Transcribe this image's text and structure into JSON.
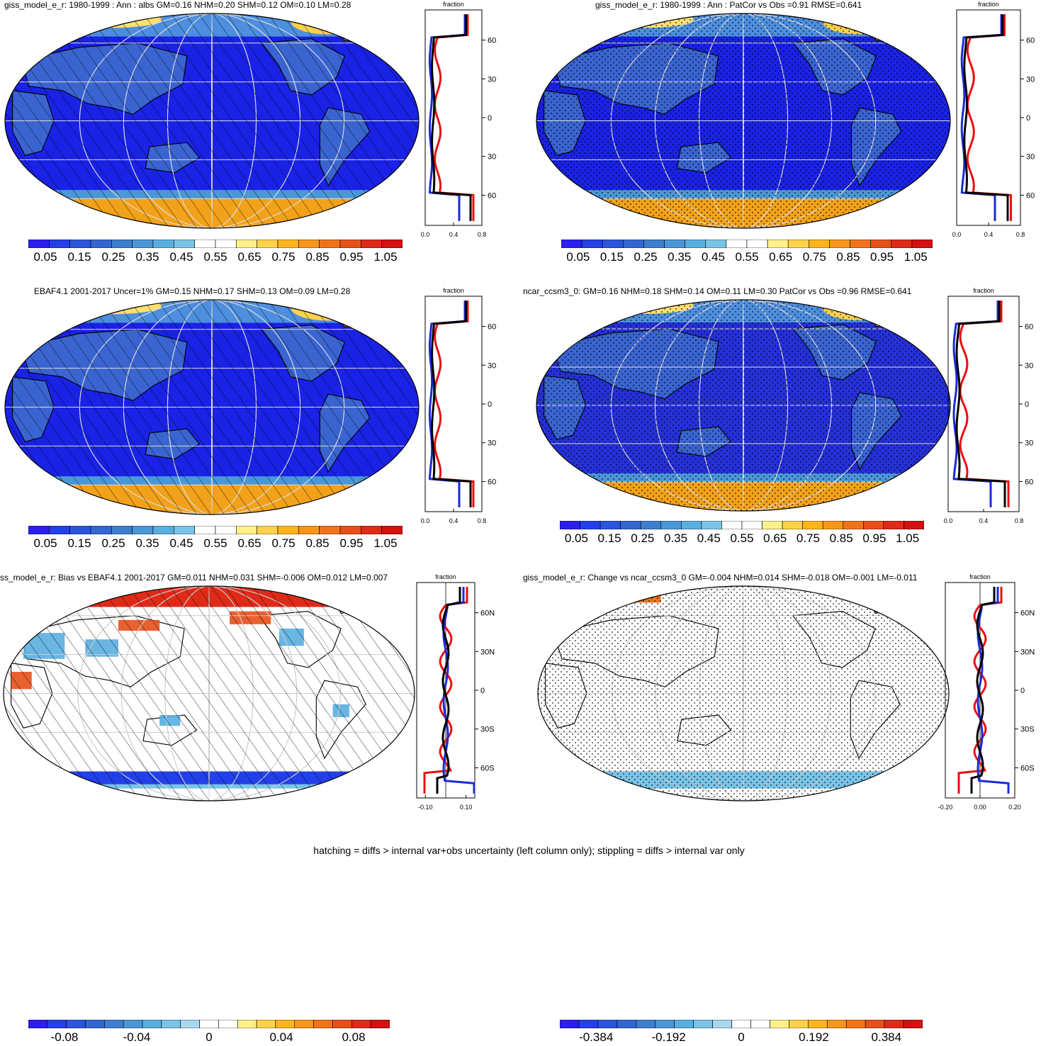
{
  "panels": [
    {
      "id": "p1",
      "title": "giss_model_e_r: 1980-1999 : Ann : albs GM=0.16 NHM=0.20 SHM=0.12 OM=0.10 LM=0.28",
      "pattern": "hatch",
      "ocean": "#1a22e6",
      "colorbar_labels": [
        "0.05",
        "0.15",
        "0.25",
        "0.35",
        "0.45",
        "0.55",
        "0.65",
        "0.75",
        "0.85",
        "0.95",
        "1.05"
      ],
      "profile": {
        "title": "fraction",
        "xticks": [
          "0.0",
          "0.4",
          "0.8"
        ],
        "yticks": [
          "60N",
          "30N",
          "0",
          "30S",
          "60S"
        ]
      }
    },
    {
      "id": "p2",
      "title": "giss_model_e_r: 1980-1999 : Ann : PatCor vs Obs =0.91 RMSE=0.641",
      "pattern": "stipple",
      "ocean": "#1a22e6",
      "colorbar_labels": [
        "0.05",
        "0.15",
        "0.25",
        "0.35",
        "0.45",
        "0.55",
        "0.65",
        "0.75",
        "0.85",
        "0.95",
        "1.05"
      ],
      "profile": {
        "title": "fraction",
        "xticks": [
          "0.0",
          "0.4",
          "0.8"
        ],
        "yticks": [
          "60N",
          "30N",
          "0",
          "30S",
          "60S"
        ]
      }
    },
    {
      "id": "p3",
      "title": "EBAF4.1 2001-2017 Uncer=1% GM=0.15 NHM=0.17 SHM=0.13 OM=0.09 LM=0.28",
      "pattern": "hatch",
      "ocean": "#1a22e6",
      "colorbar_labels": [
        "0.05",
        "0.15",
        "0.25",
        "0.35",
        "0.45",
        "0.55",
        "0.65",
        "0.75",
        "0.85",
        "0.95",
        "1.05"
      ],
      "profile": {
        "title": "fraction",
        "xticks": [
          "0.0",
          "0.4",
          "0.8"
        ],
        "yticks": [
          "60N",
          "30N",
          "0",
          "30S",
          "60S"
        ]
      }
    },
    {
      "id": "p4",
      "title": "ncar_ccsm3_0: GM=0.16 NHM=0.18 SHM=0.14 OM=0.11 LM=0.30 PatCor vs Obs =0.96 RMSE=0.641",
      "pattern": "stipple",
      "ocean": "#2530d8",
      "colorbar_labels": [
        "0.05",
        "0.15",
        "0.25",
        "0.35",
        "0.45",
        "0.55",
        "0.65",
        "0.75",
        "0.85",
        "0.95",
        "1.05"
      ],
      "profile": {
        "title": "fraction",
        "xticks": [
          "0.0",
          "0.4",
          "0.8"
        ],
        "yticks": [
          "60N",
          "30N",
          "0",
          "30S",
          "60S"
        ]
      }
    },
    {
      "id": "p5",
      "title": "ss_model_e_r: Bias vs EBAF4.1 2001-2017 GM=0.011 NHM=0.031 SHM=-0.006 OM=0.012 LM=0.007",
      "pattern": "hatch",
      "ocean": "#ffffff",
      "colorbar_labels": [
        "-0.08",
        "-0.04",
        "0",
        "0.04",
        "0.08"
      ],
      "profile": {
        "title": "fraction",
        "xticks": [
          "-0.10",
          "0.10"
        ],
        "yticks": [
          "60N",
          "30N",
          "0",
          "30S",
          "60S"
        ]
      }
    },
    {
      "id": "p6",
      "title": "giss_model_e_r: Change vs ncar_ccsm3_0 GM=-0.004 NHM=0.014 SHM=-0.018 OM=-0.001 LM=-0.011",
      "pattern": "stipple",
      "ocean": "#ffffff",
      "colorbar_labels": [
        "-0.384",
        "-0.192",
        "0",
        "0.192",
        "0.384"
      ],
      "profile": {
        "title": "fraction",
        "xticks": [
          "-0.20",
          "0.00",
          "0.20"
        ],
        "yticks": [
          "60N",
          "30N",
          "0",
          "30S",
          "60S"
        ]
      }
    }
  ],
  "colors": {
    "seq": [
      "#2d1ef0",
      "#2340e8",
      "#2a55dc",
      "#3366d2",
      "#3e7ecf",
      "#4a97d8",
      "#59aee0",
      "#7ac4e8",
      "#ffffff",
      "#ffffff",
      "#fff08a",
      "#ffd24a",
      "#ffb41e",
      "#f7961a",
      "#f0731a",
      "#e8501a",
      "#e02a18",
      "#d41010"
    ],
    "div": [
      "#2d1ef0",
      "#2340e8",
      "#2a55dc",
      "#3366d2",
      "#3e7ecf",
      "#4a97d8",
      "#59aee0",
      "#7ac4e8",
      "#a8d8f0",
      "#ffffff",
      "#ffffff",
      "#fff08a",
      "#ffd24a",
      "#ffb41e",
      "#f7961a",
      "#f0731a",
      "#e8501a",
      "#e02a18",
      "#d41010"
    ],
    "land_seq": "#3a64d0",
    "ice": "#f2a21a",
    "red": "#e81010",
    "blue": "#1a2ad8"
  },
  "footer": "hatching = diffs > internal var+obs uncertainty (left column only); stippling = diffs > internal var only"
}
